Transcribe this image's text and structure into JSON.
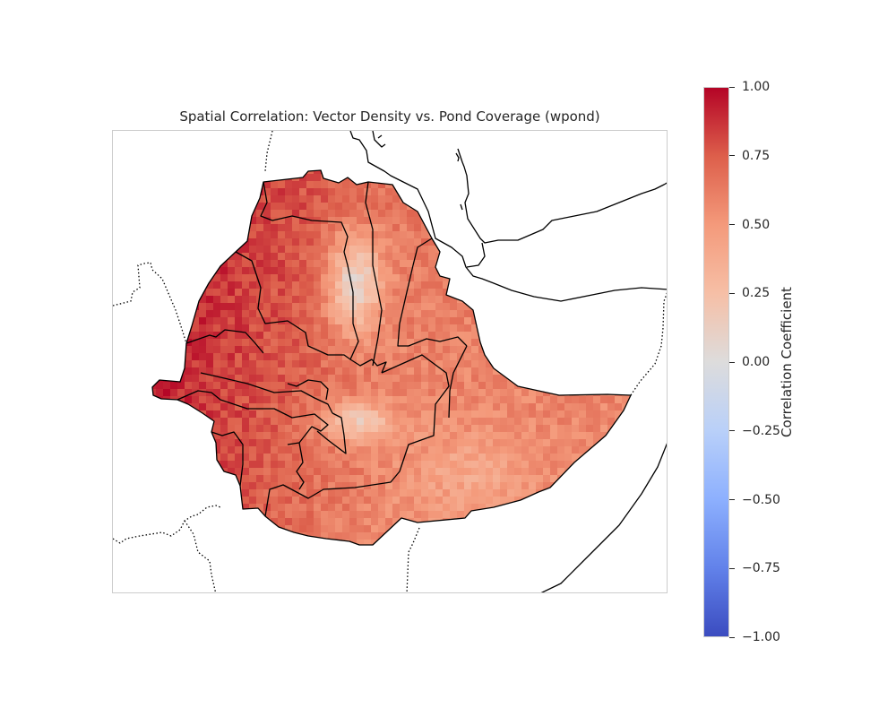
{
  "title": "Spatial Correlation: Vector Density vs. Pond Coverage (wpond)",
  "colorbar": {
    "label": "Correlation Coefficient",
    "colormap": "coolwarm",
    "vmin": -1.0,
    "vmax": 1.0,
    "stops": [
      "#b40426",
      "#dd5f4b",
      "#f49a7b",
      "#f6bfa6",
      "#dddcdc",
      "#b9d0f9",
      "#8db0fe",
      "#6282ea",
      "#3b4cc0"
    ],
    "ticks": [
      "1.00",
      "0.75",
      "0.50",
      "0.25",
      "0.00",
      "−0.25",
      "−0.50",
      "−0.75",
      "−1.00"
    ]
  },
  "map": {
    "region": "Ethiopia",
    "field": "correlation coefficient (vector density vs. pond coverage)",
    "dominant_value_range": [
      0.45,
      0.95
    ],
    "low_value_zones": [
      "north-central highlands (~0.0 to 0.3)",
      "central rift (~0.1 to 0.3)"
    ],
    "high_value_zones": [
      "north-west (~0.9)",
      "west (~0.85)"
    ],
    "borders": {
      "coastline": "solid",
      "regional": "solid",
      "international": "dotted"
    }
  }
}
